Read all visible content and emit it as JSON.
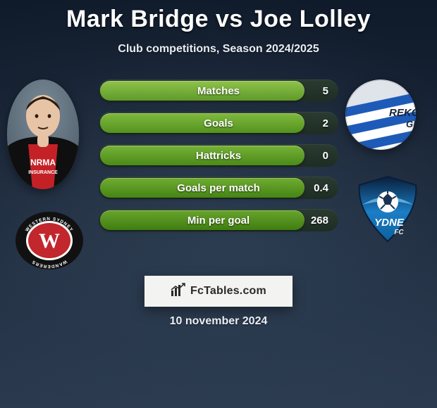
{
  "header": {
    "title": "Mark Bridge vs Joe Lolley",
    "subtitle": "Club competitions, Season 2024/2025"
  },
  "left_player": {
    "name": "Mark Bridge",
    "skin_color": "#e8c4a6",
    "hair_color": "#2a1c12",
    "jersey_primary": "#0f0f0f",
    "jersey_accent": "#c42127",
    "sponsor_text": "NRMA",
    "sponsor_sub": "INSURANCE"
  },
  "left_club": {
    "name": "Western Sydney Wanderers",
    "ring_color": "#111111",
    "ring_text_color": "#ffffff",
    "badge_color": "#c1272d",
    "monogram": "W"
  },
  "right_player": {
    "name": "Joe Lolley",
    "image_caption": "REKORDE",
    "image_sub": "GI",
    "shirt_stripe_a": "#1e5bb8",
    "shirt_stripe_b": "#ffffff",
    "bg_color": "#dfe3ea"
  },
  "right_club": {
    "name": "Sydney FC",
    "shield_top": "#0a1e3a",
    "shield_bottom": "#1b7ec6",
    "ball_color": "#ffffff",
    "text": "YDNE",
    "subtext": "FC"
  },
  "chart": {
    "type": "bar",
    "track_width_pct": 100,
    "bars": [
      {
        "label": "Matches",
        "value_text": "5",
        "fill_pct": 86,
        "c1": "#8fc24a",
        "c2": "#5f9a2a"
      },
      {
        "label": "Goals",
        "value_text": "2",
        "fill_pct": 86,
        "c1": "#7fb93e",
        "c2": "#54921f"
      },
      {
        "label": "Hattricks",
        "value_text": "0",
        "fill_pct": 86,
        "c1": "#76b237",
        "c2": "#4b8a19"
      },
      {
        "label": "Goals per match",
        "value_text": "0.4",
        "fill_pct": 86,
        "c1": "#6eac31",
        "c2": "#468415"
      },
      {
        "label": "Min per goal",
        "value_text": "268",
        "fill_pct": 86,
        "c1": "#67a52c",
        "c2": "#407d11"
      }
    ]
  },
  "brand": {
    "text": "FcTables.com"
  },
  "date_text": "10 november 2024",
  "colors": {
    "background_top": "#0f1a2a",
    "background_bottom": "#2b3a4e",
    "title_color": "#ffffff"
  }
}
